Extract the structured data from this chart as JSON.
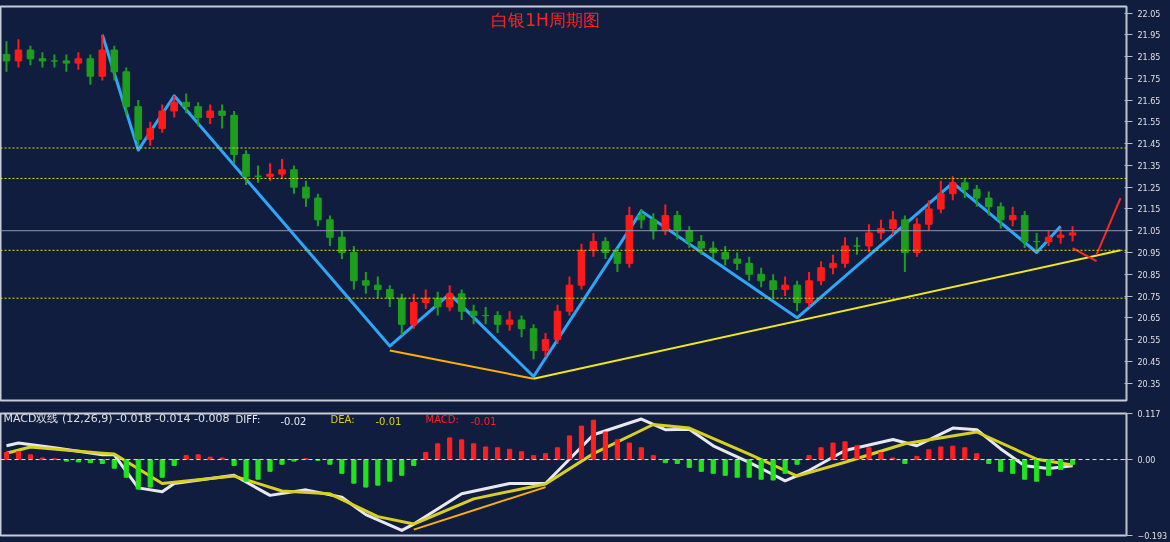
{
  "chart_data": [
    {
      "type": "candlestick",
      "title": "白银1H周期图",
      "categories": [
        null,
        null,
        null,
        null,
        null,
        null,
        null,
        null,
        null,
        null,
        null,
        null,
        null,
        null,
        null,
        null,
        null,
        null,
        null,
        null,
        null,
        null,
        null,
        null,
        null,
        null,
        null,
        null,
        null,
        null,
        null,
        null,
        null,
        null,
        null,
        null,
        null,
        null,
        null,
        null,
        null,
        null,
        null,
        null,
        null,
        null,
        null,
        null,
        null,
        null,
        null,
        null,
        null,
        null,
        null,
        null,
        null,
        null,
        null,
        null,
        null,
        null,
        null,
        null,
        null,
        null,
        null,
        null,
        null,
        null,
        null,
        null,
        null,
        null,
        null,
        null,
        null,
        null,
        null,
        null,
        null,
        null,
        null,
        null,
        null,
        null,
        null,
        null,
        null,
        null,
        null,
        null,
        null,
        null
      ],
      "ohlc": [
        [
          21.86,
          21.92,
          21.78,
          21.83
        ],
        [
          21.83,
          21.93,
          21.8,
          21.88
        ],
        [
          21.88,
          21.9,
          21.81,
          21.84
        ],
        [
          21.84,
          21.87,
          21.8,
          21.83
        ],
        [
          21.83,
          21.86,
          21.8,
          21.83
        ],
        [
          21.83,
          21.86,
          21.78,
          21.82
        ],
        [
          21.82,
          21.87,
          21.79,
          21.84
        ],
        [
          21.84,
          21.86,
          21.72,
          21.76
        ],
        [
          21.76,
          21.95,
          21.74,
          21.88
        ],
        [
          21.88,
          21.9,
          21.74,
          21.78
        ],
        [
          21.78,
          21.8,
          21.58,
          21.62
        ],
        [
          21.62,
          21.65,
          21.44,
          21.47
        ],
        [
          21.47,
          21.55,
          21.44,
          21.52
        ],
        [
          21.52,
          21.63,
          21.5,
          21.6
        ],
        [
          21.6,
          21.67,
          21.57,
          21.64
        ],
        [
          21.64,
          21.68,
          21.59,
          21.62
        ],
        [
          21.62,
          21.64,
          21.53,
          21.57
        ],
        [
          21.57,
          21.63,
          21.54,
          21.6
        ],
        [
          21.6,
          21.63,
          21.52,
          21.58
        ],
        [
          21.58,
          21.6,
          21.36,
          21.4
        ],
        [
          21.4,
          21.42,
          21.26,
          21.3
        ],
        [
          21.3,
          21.35,
          21.27,
          21.3
        ],
        [
          21.3,
          21.36,
          21.28,
          21.31
        ],
        [
          21.31,
          21.38,
          21.29,
          21.33
        ],
        [
          21.33,
          21.35,
          21.22,
          21.25
        ],
        [
          21.25,
          21.28,
          21.16,
          21.2
        ],
        [
          21.2,
          21.22,
          21.07,
          21.1
        ],
        [
          21.1,
          21.12,
          20.98,
          21.02
        ],
        [
          21.02,
          21.05,
          20.92,
          20.95
        ],
        [
          20.95,
          20.98,
          20.78,
          20.82
        ],
        [
          20.82,
          20.86,
          20.76,
          20.8
        ],
        [
          20.8,
          20.84,
          20.74,
          20.78
        ],
        [
          20.78,
          20.8,
          20.7,
          20.74
        ],
        [
          20.74,
          20.76,
          20.57,
          20.62
        ],
        [
          20.62,
          20.76,
          20.6,
          20.72
        ],
        [
          20.72,
          20.78,
          20.69,
          20.74
        ],
        [
          20.74,
          20.77,
          20.66,
          20.7
        ],
        [
          20.7,
          20.8,
          20.68,
          20.76
        ],
        [
          20.76,
          20.78,
          20.64,
          20.68
        ],
        [
          20.68,
          20.71,
          20.62,
          20.66
        ],
        [
          20.66,
          20.7,
          20.62,
          20.66
        ],
        [
          20.66,
          20.68,
          20.58,
          20.62
        ],
        [
          20.62,
          20.68,
          20.59,
          20.64
        ],
        [
          20.64,
          20.66,
          20.56,
          20.6
        ],
        [
          20.6,
          20.62,
          20.46,
          20.5
        ],
        [
          20.5,
          20.58,
          20.47,
          20.55
        ],
        [
          20.55,
          20.71,
          20.53,
          20.68
        ],
        [
          20.68,
          20.84,
          20.66,
          20.8
        ],
        [
          20.8,
          20.99,
          20.78,
          20.96
        ],
        [
          20.96,
          21.04,
          20.93,
          21.0
        ],
        [
          21.0,
          21.02,
          20.92,
          20.95
        ],
        [
          20.95,
          20.97,
          20.86,
          20.9
        ],
        [
          20.9,
          21.16,
          20.88,
          21.12
        ],
        [
          21.12,
          21.15,
          21.06,
          21.1
        ],
        [
          21.1,
          21.13,
          21.01,
          21.05
        ],
        [
          21.05,
          21.17,
          21.03,
          21.12
        ],
        [
          21.12,
          21.14,
          21.01,
          21.05
        ],
        [
          21.05,
          21.07,
          20.97,
          21.0
        ],
        [
          21.0,
          21.03,
          20.94,
          20.97
        ],
        [
          20.97,
          21.0,
          20.92,
          20.95
        ],
        [
          20.95,
          20.98,
          20.89,
          20.92
        ],
        [
          20.92,
          20.95,
          20.87,
          20.9
        ],
        [
          20.9,
          20.93,
          20.82,
          20.85
        ],
        [
          20.85,
          20.88,
          20.79,
          20.82
        ],
        [
          20.82,
          20.85,
          20.74,
          20.78
        ],
        [
          20.78,
          20.84,
          20.75,
          20.8
        ],
        [
          20.8,
          20.82,
          20.68,
          20.72
        ],
        [
          20.72,
          20.86,
          20.7,
          20.82
        ],
        [
          20.82,
          20.91,
          20.8,
          20.88
        ],
        [
          20.88,
          20.94,
          20.85,
          20.9
        ],
        [
          20.9,
          21.02,
          20.88,
          20.98
        ],
        [
          20.98,
          21.02,
          20.94,
          20.98
        ],
        [
          20.98,
          21.08,
          20.95,
          21.04
        ],
        [
          21.04,
          21.1,
          21.01,
          21.06
        ],
        [
          21.06,
          21.14,
          21.03,
          21.1
        ],
        [
          21.1,
          21.12,
          20.86,
          20.95
        ],
        [
          20.95,
          21.11,
          20.93,
          21.08
        ],
        [
          21.08,
          21.19,
          21.05,
          21.15
        ],
        [
          21.15,
          21.28,
          21.13,
          21.22
        ],
        [
          21.22,
          21.3,
          21.19,
          21.27
        ],
        [
          21.27,
          21.29,
          21.2,
          21.24
        ],
        [
          21.24,
          21.26,
          21.16,
          21.2
        ],
        [
          21.2,
          21.23,
          21.12,
          21.16
        ],
        [
          21.16,
          21.18,
          21.06,
          21.1
        ],
        [
          21.1,
          21.16,
          21.07,
          21.12
        ],
        [
          21.12,
          21.14,
          20.97,
          21.0
        ],
        [
          21.0,
          21.04,
          20.96,
          21.0
        ],
        [
          21.0,
          21.05,
          20.98,
          21.02
        ],
        [
          21.02,
          21.06,
          20.99,
          21.03
        ],
        [
          21.03,
          21.07,
          21.0,
          21.04
        ],
        null,
        null,
        null,
        null
      ],
      "colors": [
        "#1e9e1e",
        "#ff1a1a",
        "#1e9e1e",
        "#1e9e1e",
        "#1e9e1e",
        "#1e9e1e",
        "#ff1a1a",
        "#1e9e1e",
        "#ff1a1a",
        "#1e9e1e",
        "#1e9e1e",
        "#1e9e1e",
        "#ff1a1a",
        "#ff1a1a",
        "#ff1a1a",
        "#1e9e1e",
        "#1e9e1e",
        "#ff1a1a",
        "#1e9e1e",
        "#1e9e1e",
        "#1e9e1e",
        "#1e9e1e",
        "#ff1a1a",
        "#ff1a1a",
        "#1e9e1e",
        "#1e9e1e",
        "#1e9e1e",
        "#1e9e1e",
        "#1e9e1e",
        "#1e9e1e",
        "#1e9e1e",
        "#1e9e1e",
        "#1e9e1e",
        "#1e9e1e",
        "#ff1a1a",
        "#ff1a1a",
        "#1e9e1e",
        "#ff1a1a",
        "#1e9e1e",
        "#1e9e1e",
        "#1e9e1e",
        "#1e9e1e",
        "#ff1a1a",
        "#1e9e1e",
        "#1e9e1e",
        "#ff1a1a",
        "#ff1a1a",
        "#ff1a1a",
        "#ff1a1a",
        "#ff1a1a",
        "#1e9e1e",
        "#1e9e1e",
        "#ff1a1a",
        "#1e9e1e",
        "#1e9e1e",
        "#ff1a1a",
        "#1e9e1e",
        "#1e9e1e",
        "#1e9e1e",
        "#1e9e1e",
        "#1e9e1e",
        "#1e9e1e",
        "#1e9e1e",
        "#1e9e1e",
        "#1e9e1e",
        "#ff1a1a",
        "#1e9e1e",
        "#ff1a1a",
        "#ff1a1a",
        "#ff1a1a",
        "#ff1a1a",
        "#1e9e1e",
        "#ff1a1a",
        "#ff1a1a",
        "#ff1a1a",
        "#1e9e1e",
        "#ff1a1a",
        "#ff1a1a",
        "#ff1a1a",
        "#ff1a1a",
        "#1e9e1e",
        "#1e9e1e",
        "#1e9e1e",
        "#1e9e1e",
        "#ff1a1a",
        "#1e9e1e",
        "#1e9e1e",
        "#ff1a1a",
        "#ff1a1a",
        "#ff1a1a",
        null,
        null,
        null,
        null
      ],
      "series": [
        {
          "type": "line",
          "color": "#2ea6f7",
          "values": [
            null,
            null,
            null,
            null,
            null,
            null,
            null,
            null,
            21.95,
            null,
            null,
            21.42,
            null,
            null,
            21.67,
            null,
            null,
            null,
            null,
            null,
            null,
            null,
            null,
            null,
            null,
            null,
            null,
            null,
            null,
            null,
            null,
            null,
            20.52,
            null,
            null,
            null,
            null,
            20.76,
            null,
            null,
            null,
            null,
            null,
            null,
            20.38,
            null,
            null,
            null,
            null,
            null,
            null,
            null,
            null,
            21.14,
            null,
            null,
            null,
            null,
            null,
            null,
            null,
            null,
            null,
            null,
            null,
            null,
            20.65,
            null,
            null,
            null,
            null,
            null,
            null,
            null,
            null,
            null,
            null,
            null,
            null,
            21.27,
            null,
            null,
            null,
            null,
            null,
            null,
            20.95,
            null,
            21.07,
            null,
            null,
            null,
            null,
            null
          ]
        },
        {
          "type": "line",
          "color": "#f0e81a",
          "values": [
            null,
            null,
            null,
            null,
            null,
            null,
            null,
            null,
            null,
            null,
            null,
            null,
            null,
            null,
            null,
            null,
            null,
            null,
            null,
            null,
            null,
            null,
            null,
            null,
            null,
            null,
            null,
            null,
            null,
            null,
            null,
            null,
            null,
            null,
            null,
            null,
            null,
            null,
            null,
            null,
            null,
            null,
            null,
            null,
            20.37,
            null,
            null,
            null,
            null,
            null,
            null,
            null,
            null,
            null,
            null,
            null,
            null,
            null,
            null,
            null,
            null,
            null,
            null,
            null,
            null,
            null,
            null,
            null,
            null,
            null,
            null,
            null,
            null,
            null,
            null,
            null,
            null,
            null,
            null,
            null,
            null,
            null,
            null,
            null,
            null,
            null,
            null,
            null,
            null,
            null,
            null,
            null,
            null,
            20.96
          ]
        },
        {
          "type": "line",
          "color": "#ffb000",
          "values": [
            null,
            null,
            null,
            null,
            null,
            null,
            null,
            null,
            null,
            null,
            null,
            null,
            null,
            null,
            null,
            null,
            null,
            null,
            null,
            null,
            null,
            null,
            null,
            null,
            null,
            null,
            null,
            null,
            null,
            null,
            null,
            null,
            20.5,
            null,
            null,
            null,
            null,
            null,
            null,
            null,
            null,
            null,
            null,
            null,
            20.37,
            null,
            null,
            null,
            null,
            null,
            null,
            null,
            null,
            null,
            null,
            null,
            null,
            null,
            null,
            null,
            null,
            null,
            null,
            null,
            null,
            null,
            null,
            null,
            null,
            null,
            null,
            null,
            null,
            null,
            null,
            null,
            null,
            null,
            null,
            null,
            null,
            null,
            null,
            null,
            null,
            null,
            null,
            null,
            null,
            null,
            null,
            null,
            null,
            null
          ]
        },
        {
          "type": "line",
          "color": "#ff2a1a",
          "values": [
            null,
            null,
            null,
            null,
            null,
            null,
            null,
            null,
            null,
            null,
            null,
            null,
            null,
            null,
            null,
            null,
            null,
            null,
            null,
            null,
            null,
            null,
            null,
            null,
            null,
            null,
            null,
            null,
            null,
            null,
            null,
            null,
            null,
            null,
            null,
            null,
            null,
            null,
            null,
            null,
            null,
            null,
            null,
            null,
            null,
            null,
            null,
            null,
            null,
            null,
            null,
            null,
            null,
            null,
            null,
            null,
            null,
            null,
            null,
            null,
            null,
            null,
            null,
            null,
            null,
            null,
            null,
            null,
            null,
            null,
            null,
            null,
            null,
            null,
            null,
            null,
            null,
            null,
            null,
            null,
            null,
            null,
            null,
            null,
            null,
            null,
            null,
            null,
            null,
            20.97,
            null,
            20.91,
            null,
            null
          ]
        },
        {
          "type": "line",
          "color": "#ff2a1a",
          "values": [
            null,
            null,
            null,
            null,
            null,
            null,
            null,
            null,
            null,
            null,
            null,
            null,
            null,
            null,
            null,
            null,
            null,
            null,
            null,
            null,
            null,
            null,
            null,
            null,
            null,
            null,
            null,
            null,
            null,
            null,
            null,
            null,
            null,
            null,
            null,
            null,
            null,
            null,
            null,
            null,
            null,
            null,
            null,
            null,
            null,
            null,
            null,
            null,
            null,
            null,
            null,
            null,
            null,
            null,
            null,
            null,
            null,
            null,
            null,
            null,
            null,
            null,
            null,
            null,
            null,
            null,
            null,
            null,
            null,
            null,
            null,
            null,
            null,
            null,
            null,
            null,
            null,
            null,
            null,
            null,
            null,
            null,
            null,
            null,
            null,
            null,
            null,
            null,
            null,
            null,
            null,
            20.94,
            null,
            21.2
          ]
        }
      ],
      "ref_lines": [
        {
          "axis": "y",
          "value": 21.43,
          "color": "#e8e000",
          "line_style": "dotted"
        },
        {
          "axis": "y",
          "value": 21.29,
          "color": "#e8e000",
          "line_style": "dotted"
        },
        {
          "axis": "y",
          "value": 20.96,
          "color": "#e8e000",
          "line_style": "dotted"
        },
        {
          "axis": "y",
          "value": 20.74,
          "color": "#e8e000",
          "line_style": "dotted"
        },
        {
          "axis": "y",
          "value": 21.05,
          "color": "#8d96ad",
          "line_style": "solid"
        }
      ],
      "ylim": [
        20.27,
        22.08
      ],
      "yticks": [
        20.35,
        20.45,
        20.55,
        20.65,
        20.75,
        20.85,
        20.95,
        21.05,
        21.15,
        21.25,
        21.35,
        21.45,
        21.55,
        21.65,
        21.75,
        21.85,
        21.95,
        22.05
      ],
      "tick_labels": "y",
      "grid": false
    },
    {
      "type": "bar",
      "categories": [
        null,
        null,
        null,
        null,
        null,
        null,
        null,
        null,
        null,
        null,
        null,
        null,
        null,
        null,
        null,
        null,
        null,
        null,
        null,
        null,
        null,
        null,
        null,
        null,
        null,
        null,
        null,
        null,
        null,
        null,
        null,
        null,
        null,
        null,
        null,
        null,
        null,
        null,
        null,
        null,
        null,
        null,
        null,
        null,
        null,
        null,
        null,
        null,
        null,
        null,
        null,
        null,
        null,
        null,
        null,
        null,
        null,
        null,
        null,
        null,
        null,
        null,
        null,
        null,
        null,
        null,
        null,
        null,
        null,
        null,
        null,
        null,
        null,
        null,
        null,
        null,
        null,
        null,
        null,
        null,
        null,
        null,
        null,
        null,
        null,
        null,
        null,
        null,
        null,
        null,
        null,
        null,
        null,
        null
      ],
      "series": [
        {
          "name": "DIFF:",
          "type": "line",
          "color": "#e8e8f0",
          "values": [
            0.035,
            0.042,
            null,
            null,
            0.03,
            null,
            null,
            null,
            0.012,
            0.012,
            null,
            -0.072,
            null,
            -0.082,
            -0.061,
            null,
            null,
            null,
            null,
            -0.04,
            null,
            null,
            -0.091,
            null,
            null,
            -0.077,
            null,
            null,
            -0.096,
            null,
            -0.14,
            null,
            null,
            -0.18,
            -0.164,
            null,
            null,
            null,
            -0.087,
            null,
            null,
            null,
            -0.061,
            null,
            null,
            -0.061,
            null,
            null,
            null,
            0.063,
            null,
            null,
            null,
            0.103,
            null,
            0.076,
            null,
            0.077,
            null,
            0.035,
            null,
            null,
            -0.007,
            null,
            null,
            -0.054,
            null,
            -0.028,
            null,
            null,
            0.023,
            null,
            null,
            null,
            0.051,
            null,
            0.035,
            null,
            null,
            0.08,
            null,
            0.076,
            null,
            0.027,
            null,
            -0.016,
            null,
            -0.023,
            null,
            -0.016,
            null,
            null,
            null,
            null
          ]
        },
        {
          "name": "DEA:",
          "type": "line",
          "color": "#d8d020",
          "values": [
            0.016,
            null,
            0.032,
            null,
            null,
            null,
            null,
            null,
            0.016,
            0.014,
            null,
            null,
            null,
            -0.061,
            null,
            null,
            null,
            null,
            null,
            -0.042,
            null,
            null,
            null,
            -0.08,
            null,
            null,
            null,
            -0.087,
            null,
            null,
            null,
            -0.145,
            null,
            null,
            -0.164,
            null,
            null,
            null,
            null,
            -0.1,
            null,
            null,
            null,
            null,
            null,
            -0.062,
            null,
            null,
            null,
            0.015,
            null,
            null,
            null,
            null,
            0.089,
            null,
            null,
            0.08,
            null,
            null,
            null,
            null,
            0.014,
            null,
            null,
            null,
            -0.042,
            null,
            null,
            null,
            -0.007,
            null,
            null,
            null,
            null,
            0.04,
            null,
            null,
            null,
            null,
            null,
            0.07,
            null,
            null,
            null,
            null,
            0.001,
            null,
            null,
            -0.014,
            null,
            null,
            null,
            null
          ]
        },
        {
          "name": "MACD:",
          "type": "bar",
          "color": "#ff2020",
          "values": [
            0.018,
            0.02,
            0.012,
            0.004,
            0.002,
            -0.004,
            -0.006,
            -0.008,
            -0.01,
            -0.022,
            -0.045,
            -0.075,
            -0.07,
            -0.045,
            -0.015,
            0.01,
            0.012,
            0.006,
            0.004,
            -0.015,
            -0.055,
            -0.05,
            -0.03,
            -0.012,
            -0.004,
            0.002,
            -0.002,
            -0.012,
            -0.035,
            -0.06,
            -0.07,
            -0.065,
            -0.055,
            -0.04,
            -0.015,
            0.018,
            0.04,
            0.055,
            0.05,
            0.04,
            0.032,
            0.03,
            0.026,
            0.02,
            0.01,
            0.015,
            0.03,
            0.06,
            0.085,
            0.1,
            0.07,
            0.05,
            0.042,
            0.03,
            0.01,
            -0.008,
            -0.01,
            -0.02,
            -0.03,
            -0.035,
            -0.04,
            -0.045,
            -0.045,
            -0.05,
            -0.052,
            -0.035,
            -0.012,
            0.01,
            0.03,
            0.042,
            0.045,
            0.035,
            0.03,
            0.018,
            0.004,
            -0.01,
            0.008,
            0.025,
            0.032,
            0.034,
            0.03,
            0.015,
            -0.01,
            -0.03,
            -0.035,
            -0.05,
            -0.055,
            -0.04,
            -0.025,
            -0.012,
            null,
            null,
            null,
            null
          ],
          "colors": [
            "#ff2020",
            "#ff2020",
            "#ff2020",
            "#ff2020",
            "#ff2020",
            "#22e31e",
            "#22e31e",
            "#22e31e",
            "#22e31e",
            "#22e31e",
            "#22e31e",
            "#22e31e",
            "#22e31e",
            "#22e31e",
            "#22e31e",
            "#ff2020",
            "#ff2020",
            "#ff2020",
            "#ff2020",
            "#22e31e",
            "#22e31e",
            "#22e31e",
            "#22e31e",
            "#22e31e",
            "#22e31e",
            "#ff2020",
            "#22e31e",
            "#22e31e",
            "#22e31e",
            "#22e31e",
            "#22e31e",
            "#22e31e",
            "#22e31e",
            "#22e31e",
            "#22e31e",
            "#ff2020",
            "#ff2020",
            "#ff2020",
            "#ff2020",
            "#ff2020",
            "#ff2020",
            "#ff2020",
            "#ff2020",
            "#ff2020",
            "#ff2020",
            "#ff2020",
            "#ff2020",
            "#ff2020",
            "#ff2020",
            "#ff2020",
            "#ff2020",
            "#ff2020",
            "#ff2020",
            "#ff2020",
            "#ff2020",
            "#22e31e",
            "#22e31e",
            "#22e31e",
            "#22e31e",
            "#22e31e",
            "#22e31e",
            "#22e31e",
            "#22e31e",
            "#22e31e",
            "#22e31e",
            "#22e31e",
            "#22e31e",
            "#ff2020",
            "#ff2020",
            "#ff2020",
            "#ff2020",
            "#ff2020",
            "#ff2020",
            "#ff2020",
            "#ff2020",
            "#22e31e",
            "#ff2020",
            "#ff2020",
            "#ff2020",
            "#ff2020",
            "#ff2020",
            "#ff2020",
            "#22e31e",
            "#22e31e",
            "#22e31e",
            "#22e31e",
            "#22e31e",
            "#22e31e",
            "#22e31e",
            "#22e31e",
            null,
            null,
            null,
            null
          ]
        },
        {
          "type": "line",
          "color": "#ffb000",
          "values": [
            null,
            null,
            null,
            null,
            null,
            null,
            null,
            null,
            null,
            null,
            null,
            null,
            null,
            null,
            null,
            null,
            null,
            null,
            null,
            null,
            null,
            null,
            null,
            null,
            null,
            null,
            null,
            null,
            null,
            null,
            null,
            null,
            null,
            null,
            -0.178,
            null,
            null,
            null,
            null,
            null,
            null,
            null,
            null,
            null,
            null,
            -0.07,
            null,
            null,
            null,
            null,
            null,
            null,
            null,
            null,
            null,
            null,
            null,
            null,
            null,
            null,
            null,
            null,
            null,
            null,
            null,
            null,
            null,
            null,
            null,
            null,
            null,
            null,
            null,
            null,
            null,
            null,
            null,
            null,
            null,
            null,
            null,
            null,
            null,
            null,
            null,
            null,
            null,
            null,
            null,
            null,
            null,
            null,
            null,
            null
          ]
        }
      ],
      "annotations": [
        "MACD双线 (12,26,9) -0.018 -0.014 -0.008",
        "-0.02",
        "-0.01",
        "-0.01"
      ],
      "ref_lines": [
        {
          "axis": "y",
          "value": 0,
          "color": "#dddddd",
          "line_style": "dashed"
        }
      ],
      "ylim": [
        -0.193,
        0.117
      ],
      "yticks": [
        -0.193,
        {
          "value": 0,
          "label": "0.00"
        },
        0.117
      ],
      "tick_labels": "y",
      "grid": false
    }
  ]
}
